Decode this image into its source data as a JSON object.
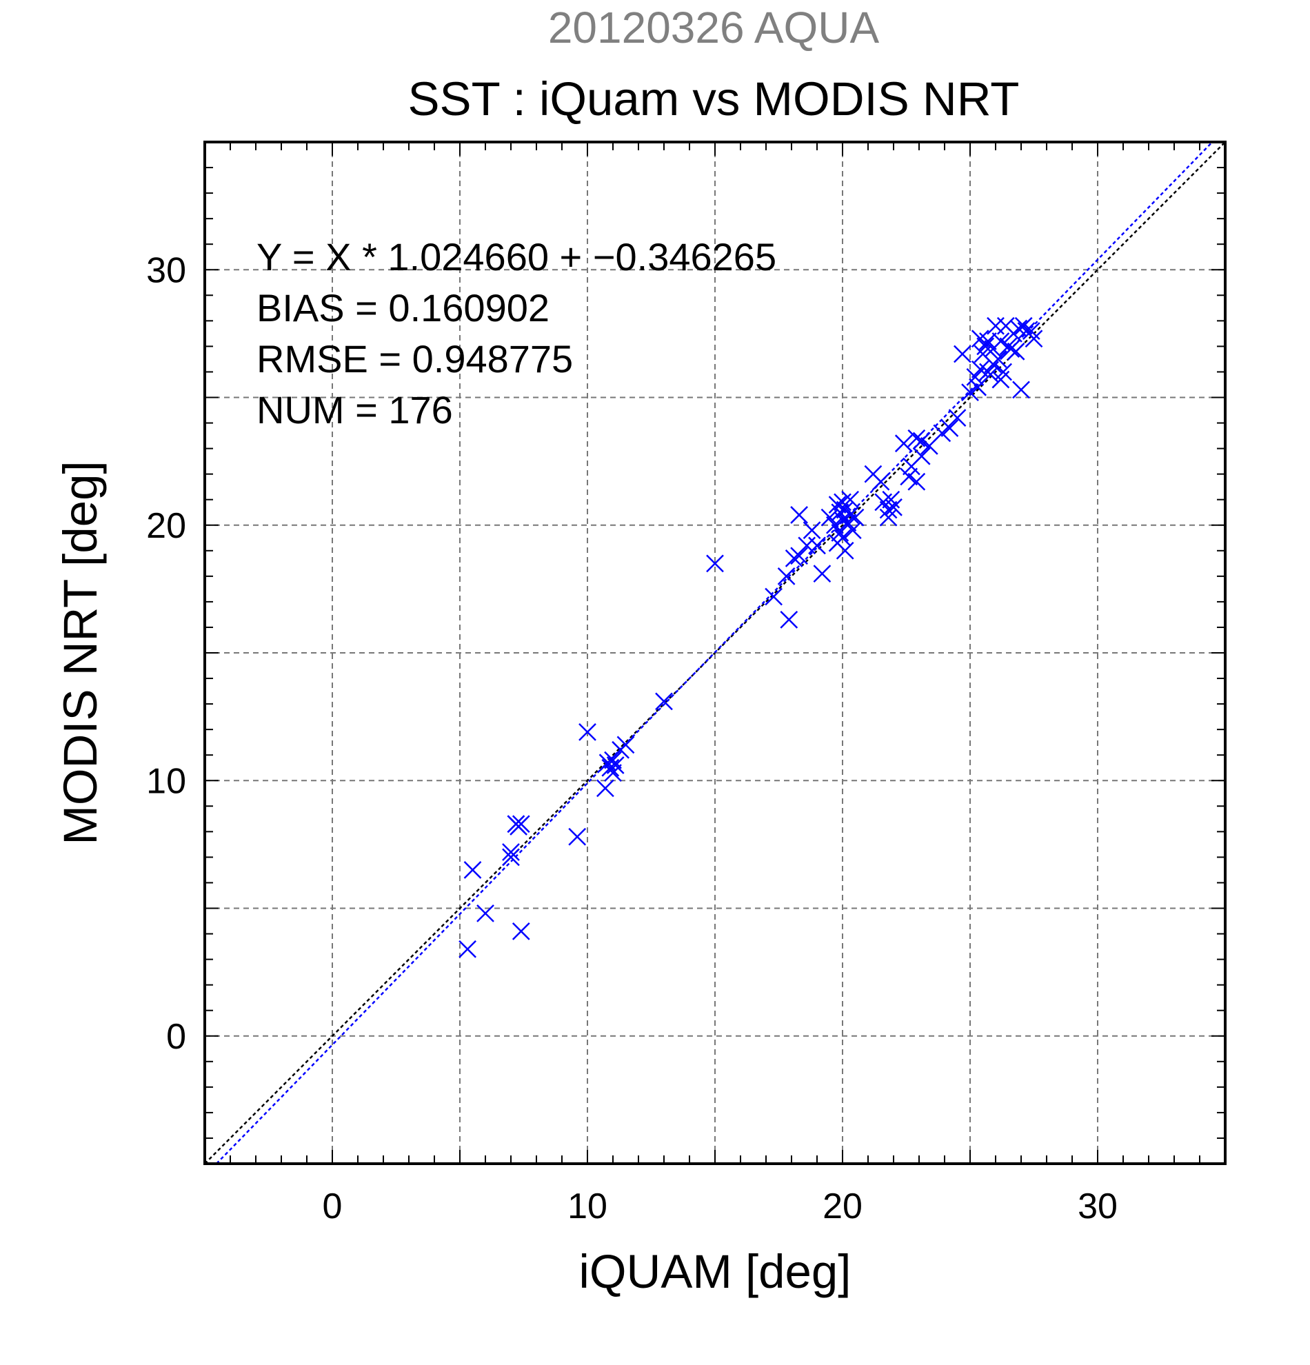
{
  "chart_data": {
    "type": "scatter",
    "supertitle": "20120326 AQUA",
    "title": "SST : iQuam vs MODIS NRT",
    "xlabel": "iQUAM [deg]",
    "ylabel": "MODIS NRT [deg]",
    "xlim": [
      -5,
      35
    ],
    "ylim": [
      -5,
      35
    ],
    "xticks": [
      0,
      10,
      20,
      30
    ],
    "yticks": [
      0,
      10,
      20,
      30
    ],
    "grid": true,
    "stats": [
      "Y = X * 1.024660 + −0.346265",
      "BIAS = 0.160902",
      "RMSE = 0.948775",
      "NUM = 176"
    ],
    "fit": {
      "slope": 1.02466,
      "intercept": -0.346265,
      "color": "#0000ff"
    },
    "identity_line_color": "#000000",
    "marker_color": "#0000ff",
    "supertitle_color": "#808080",
    "points": [
      [
        5.3,
        3.4
      ],
      [
        5.5,
        6.5
      ],
      [
        6.0,
        4.8
      ],
      [
        7.0,
        7.2
      ],
      [
        7.0,
        7.0
      ],
      [
        7.2,
        8.3
      ],
      [
        7.3,
        8.2
      ],
      [
        7.2,
        8.3
      ],
      [
        7.4,
        8.3
      ],
      [
        7.4,
        4.1
      ],
      [
        9.6,
        7.8
      ],
      [
        10.0,
        11.9
      ],
      [
        10.7,
        9.7
      ],
      [
        10.8,
        10.7
      ],
      [
        10.9,
        10.5
      ],
      [
        11.0,
        10.8
      ],
      [
        11.0,
        10.3
      ],
      [
        11.1,
        10.6
      ],
      [
        11.3,
        11.2
      ],
      [
        11.5,
        11.4
      ],
      [
        13.0,
        13.1
      ],
      [
        15.0,
        18.5
      ],
      [
        17.3,
        17.2
      ],
      [
        17.8,
        18.0
      ],
      [
        17.9,
        16.3
      ],
      [
        18.1,
        18.7
      ],
      [
        18.3,
        18.8
      ],
      [
        18.3,
        20.4
      ],
      [
        18.6,
        19.2
      ],
      [
        18.8,
        19.8
      ],
      [
        19.0,
        19.2
      ],
      [
        19.2,
        18.1
      ],
      [
        19.5,
        20.3
      ],
      [
        19.7,
        20.0
      ],
      [
        19.8,
        20.8
      ],
      [
        19.8,
        19.3
      ],
      [
        19.9,
        20.5
      ],
      [
        19.9,
        19.7
      ],
      [
        20.0,
        20.9
      ],
      [
        20.0,
        19.5
      ],
      [
        20.0,
        20.2
      ],
      [
        20.1,
        19.0
      ],
      [
        20.1,
        20.6
      ],
      [
        20.2,
        20.1
      ],
      [
        20.3,
        20.4
      ],
      [
        20.3,
        21.0
      ],
      [
        20.4,
        19.8
      ],
      [
        20.5,
        20.3
      ],
      [
        21.2,
        22.0
      ],
      [
        21.5,
        21.7
      ],
      [
        21.6,
        20.9
      ],
      [
        21.8,
        20.6
      ],
      [
        21.8,
        20.3
      ],
      [
        21.9,
        21.0
      ],
      [
        22.0,
        20.7
      ],
      [
        22.4,
        23.2
      ],
      [
        22.6,
        21.9
      ],
      [
        22.7,
        22.3
      ],
      [
        22.9,
        23.4
      ],
      [
        22.9,
        21.7
      ],
      [
        23.1,
        22.7
      ],
      [
        23.1,
        23.3
      ],
      [
        23.4,
        23.1
      ],
      [
        23.9,
        23.6
      ],
      [
        24.2,
        23.8
      ],
      [
        24.5,
        24.2
      ],
      [
        24.7,
        26.7
      ],
      [
        25.0,
        25.2
      ],
      [
        25.2,
        25.8
      ],
      [
        25.3,
        25.4
      ],
      [
        25.4,
        26.1
      ],
      [
        25.4,
        27.3
      ],
      [
        25.5,
        26.7
      ],
      [
        25.6,
        27.0
      ],
      [
        25.7,
        26.0
      ],
      [
        25.7,
        27.2
      ],
      [
        25.8,
        25.9
      ],
      [
        25.9,
        26.9
      ],
      [
        25.9,
        26.3
      ],
      [
        26.0,
        27.8
      ],
      [
        26.1,
        26.5
      ],
      [
        26.2,
        25.7
      ],
      [
        26.2,
        27.2
      ],
      [
        26.3,
        26.0
      ],
      [
        26.4,
        27.8
      ],
      [
        26.5,
        27.0
      ],
      [
        26.6,
        26.9
      ],
      [
        26.7,
        27.5
      ],
      [
        26.8,
        26.8
      ],
      [
        26.9,
        27.7
      ],
      [
        27.0,
        25.3
      ],
      [
        27.1,
        27.8
      ],
      [
        27.2,
        27.6
      ],
      [
        27.4,
        27.6
      ],
      [
        27.5,
        27.3
      ]
    ]
  }
}
